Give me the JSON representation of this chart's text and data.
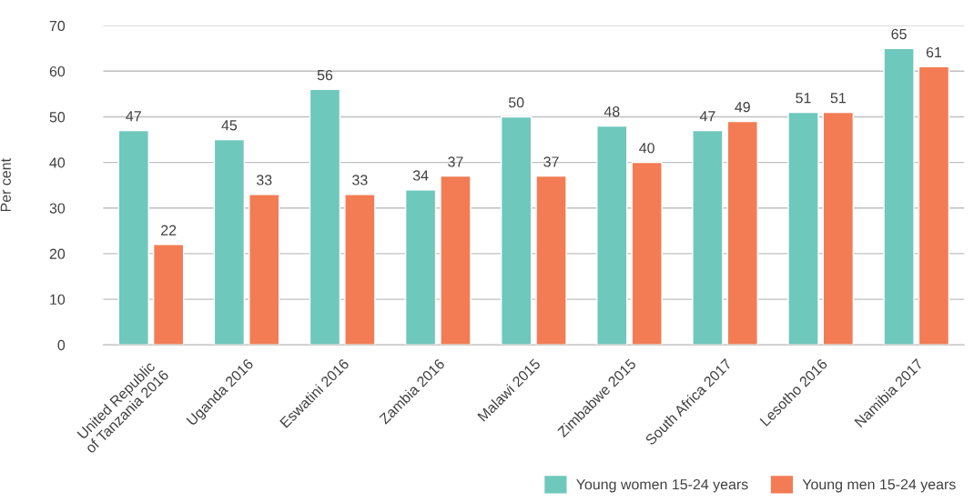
{
  "chart_data": {
    "type": "bar",
    "ylabel": "Per cent",
    "categories": [
      "United Republic\nof Tanzania 2016",
      "Uganda 2016",
      "Eswatini 2016",
      "Zambia 2016",
      "Malawi 2015",
      "Zimbabwe 2015",
      "South Africa 2017",
      "Lesotho 2016",
      "Namibia 2017"
    ],
    "series": [
      {
        "name": "Young women 15-24 years",
        "color": "#6fc8bc",
        "values": [
          47,
          45,
          56,
          34,
          50,
          48,
          47,
          51,
          65
        ]
      },
      {
        "name": "Young men 15-24 years",
        "color": "#f37c54",
        "values": [
          22,
          33,
          33,
          37,
          37,
          40,
          49,
          51,
          61
        ]
      }
    ],
    "ylim": [
      0,
      70
    ],
    "yticks": [
      0,
      10,
      20,
      30,
      40,
      50,
      60,
      70
    ],
    "grid": "y",
    "legend": "bottom right",
    "data_labels": true
  }
}
